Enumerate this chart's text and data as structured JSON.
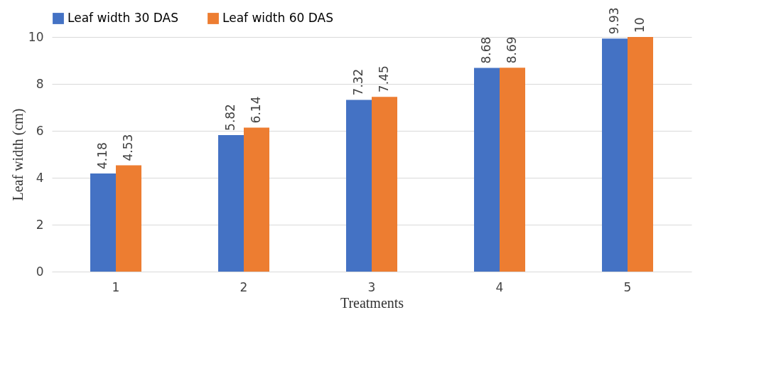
{
  "chart_data": {
    "type": "bar",
    "xlabel": "Treatments",
    "ylabel": "Leaf width (cm)",
    "categories": [
      "1",
      "2",
      "3",
      "4",
      "5"
    ],
    "series": [
      {
        "name": "Leaf width 30 DAS",
        "color": "#4472c4",
        "values": [
          4.18,
          5.82,
          7.32,
          8.68,
          9.93
        ]
      },
      {
        "name": "Leaf width 60 DAS",
        "color": "#ed7d31",
        "values": [
          4.53,
          6.14,
          7.45,
          8.69,
          10
        ]
      }
    ],
    "ylim": [
      0,
      10
    ],
    "yticks": [
      0,
      2,
      4,
      6,
      8,
      10
    ],
    "grid": "y",
    "legend": "top",
    "data_labels": true
  }
}
